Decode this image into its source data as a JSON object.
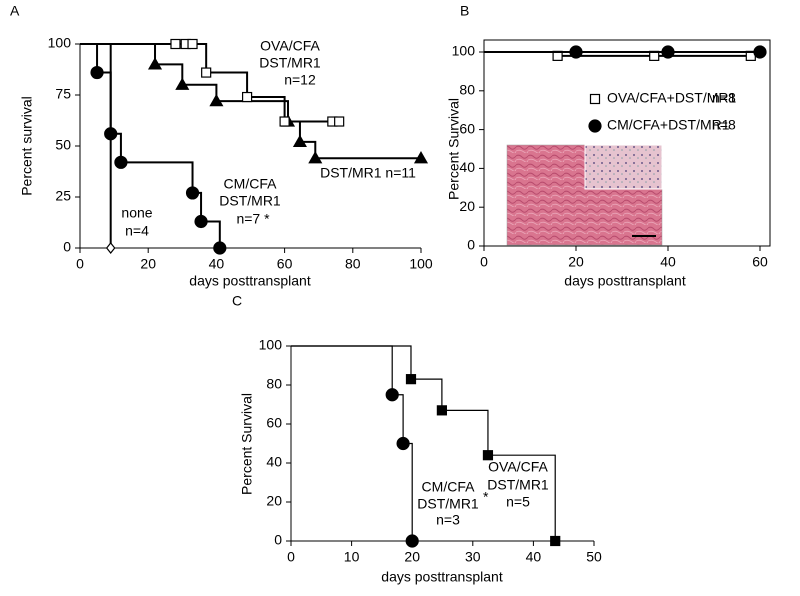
{
  "chart_data": [
    {
      "type": "survival",
      "panel": "A",
      "xlabel": "days posttransplant",
      "ylabel": "Percent survival",
      "xlim": [
        0,
        100
      ],
      "ylim": [
        0,
        100
      ],
      "xticks": [
        0,
        20,
        40,
        60,
        80,
        100
      ],
      "yticks": [
        0,
        25,
        50,
        75,
        100
      ],
      "series": [
        {
          "name": "none",
          "marker": "diamond-open",
          "color": "#000000",
          "x": [
            9
          ],
          "values": [
            0
          ]
        },
        {
          "name": "CM/CFA",
          "marker": "circle",
          "color": "#000000",
          "x": [
            5,
            9,
            12,
            33,
            35.5,
            41
          ],
          "values": [
            86,
            56,
            42,
            27,
            13,
            0
          ]
        },
        {
          "name": "DST/MR1",
          "marker": "triangle",
          "color": "#000000",
          "x": [
            22,
            30,
            40,
            61,
            64.5,
            69,
            100
          ],
          "values": [
            90,
            80,
            72,
            62,
            52,
            44,
            44
          ]
        },
        {
          "name": "OVA/CFA",
          "marker": "square-open",
          "color": "#000000",
          "x": [
            28,
            31,
            33,
            37,
            49,
            60,
            74,
            76
          ],
          "values": [
            100,
            100,
            100,
            86,
            74,
            62,
            62,
            62
          ]
        }
      ],
      "annotations": [
        "OVA/CFA",
        "DST/MR1",
        "n=12",
        "DST/MR1 n=11",
        "CM/CFA",
        "DST/MR1",
        "n=7 *",
        "none",
        "n=4"
      ]
    },
    {
      "type": "survival",
      "panel": "B",
      "xlabel": "days posttransplant",
      "ylabel": "Percent Survival",
      "xlim": [
        0,
        60
      ],
      "ylim": [
        0,
        100
      ],
      "xticks": [
        0,
        20,
        40,
        60
      ],
      "yticks": [
        0,
        20,
        40,
        60,
        80,
        100
      ],
      "series": [
        {
          "name": "OVA/CFA+DST/MR1",
          "marker": "square-open",
          "color": "#000000",
          "x": [
            16,
            37,
            58
          ],
          "values": [
            98,
            98,
            98
          ]
        },
        {
          "name": "CM/CFA+DST/MR1",
          "marker": "circle",
          "color": "#000000",
          "x": [
            20,
            40,
            60
          ],
          "values": [
            100,
            100,
            100
          ]
        }
      ],
      "legend": true,
      "annotations": [
        "n=8",
        "n=8"
      ]
    },
    {
      "type": "survival",
      "panel": "C",
      "xlabel": "days posttransplant",
      "ylabel": "Percent Survival",
      "xlim": [
        0,
        50
      ],
      "ylim": [
        0,
        100
      ],
      "xticks": [
        0,
        10,
        20,
        30,
        40,
        50
      ],
      "yticks": [
        0,
        20,
        40,
        60,
        80,
        100
      ],
      "series": [
        {
          "name": "CM/CFA",
          "marker": "circle",
          "color": "#000000",
          "x": [
            16.7,
            18.5,
            20
          ],
          "values": [
            75,
            50,
            0
          ]
        },
        {
          "name": "OVA/CFA",
          "marker": "square",
          "color": "#000000",
          "x": [
            19.8,
            24.9,
            32.5,
            43.6
          ],
          "values": [
            83,
            67,
            44,
            0
          ]
        }
      ],
      "annotations": [
        "OVA/CFA",
        "DST/MR1",
        "n=5",
        "CM/CFA",
        "DST/MR1",
        "*",
        "n=3"
      ]
    }
  ]
}
